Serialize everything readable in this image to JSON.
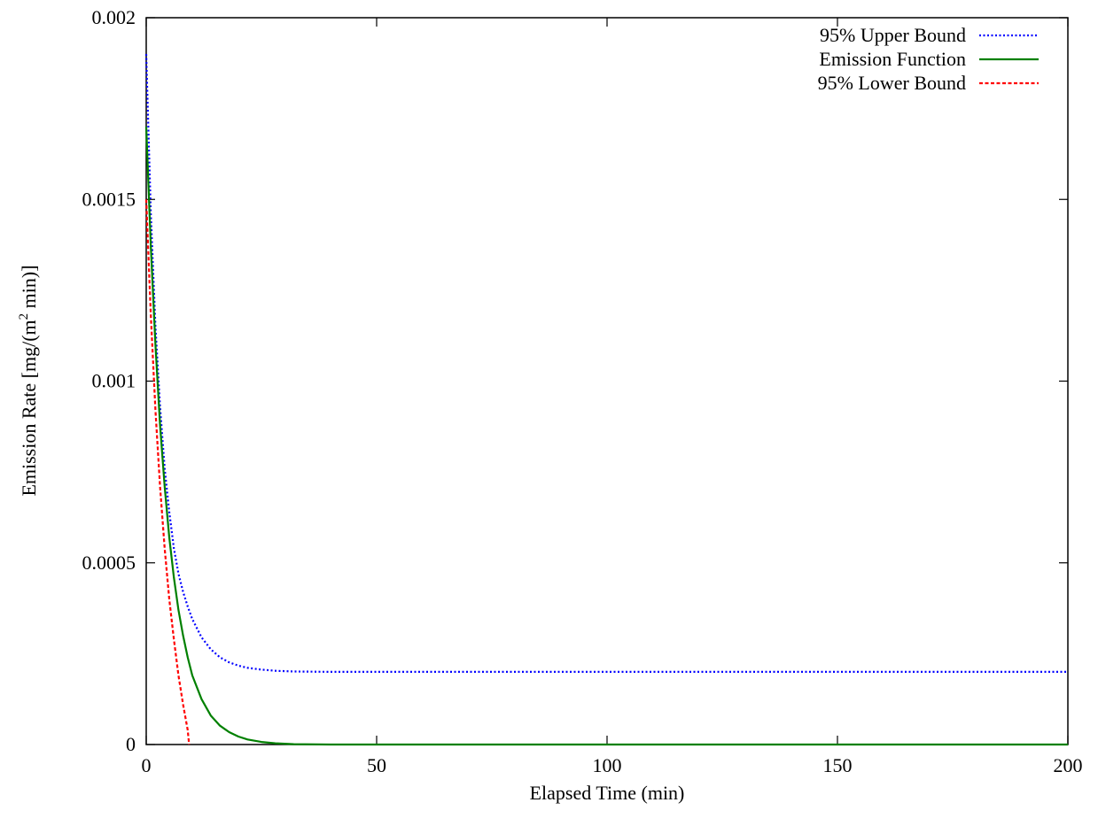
{
  "chart_data": {
    "type": "line",
    "title": "",
    "xlabel": "Elapsed Time (min)",
    "ylabel_main": "Emission Rate [mg/(m",
    "ylabel_sup": "2",
    "ylabel_tail": " min)]",
    "xlim": [
      0,
      200
    ],
    "ylim": [
      0,
      0.002
    ],
    "xticks": [
      0,
      50,
      100,
      150,
      200
    ],
    "xtick_labels": [
      "0",
      "50",
      "100",
      "150",
      "200"
    ],
    "yticks": [
      0,
      0.0005,
      0.001,
      0.0015,
      0.002
    ],
    "ytick_labels": [
      "0",
      "0.0005",
      "0.001",
      "0.0015",
      "0.002"
    ],
    "grid": false,
    "legend_position": "top-right",
    "series": [
      {
        "name": "95% Upper Bound",
        "color": "#0000ff",
        "dash": "dotted",
        "x": [
          0,
          1,
          2,
          3,
          4,
          5,
          6,
          7,
          8,
          9,
          10,
          12,
          14,
          16,
          18,
          20,
          22,
          25,
          28,
          32,
          40,
          60,
          100,
          150,
          200
        ],
        "y": [
          0.0019,
          0.00146,
          0.00115,
          0.00093,
          0.00076,
          0.00064,
          0.00054,
          0.00047,
          0.00042,
          0.00038,
          0.000345,
          0.000295,
          0.000262,
          0.00024,
          0.000226,
          0.000217,
          0.000211,
          0.000206,
          0.000203,
          0.000201,
          0.0002,
          0.0002,
          0.0002,
          0.0002,
          0.0002
        ]
      },
      {
        "name": "Emission Function",
        "color": "#008000",
        "dash": "solid",
        "x": [
          0,
          1,
          2,
          3,
          4,
          5,
          6,
          7,
          8,
          9,
          10,
          12,
          14,
          16,
          18,
          20,
          22,
          25,
          28,
          32,
          40,
          60,
          100,
          150,
          200
        ],
        "y": [
          0.0017,
          0.00137,
          0.0011,
          0.00088,
          0.00071,
          0.00057,
          0.00046,
          0.00037,
          0.0003,
          0.00024,
          0.00019,
          0.000125,
          8e-05,
          5.2e-05,
          3.4e-05,
          2.2e-05,
          1.4e-05,
          7e-06,
          3.5e-06,
          1e-06,
          0.0,
          0.0,
          0.0,
          0.0,
          0.0
        ]
      },
      {
        "name": "95% Lower Bound",
        "color": "#ff0000",
        "dash": "dashed",
        "x": [
          0,
          1,
          2,
          3,
          4,
          5,
          6,
          7,
          8,
          9,
          9.3
        ],
        "y": [
          0.0015,
          0.00118,
          0.00092,
          0.00071,
          0.00054,
          0.0004,
          0.00029,
          0.00019,
          0.00011,
          4e-05,
          0.0
        ]
      }
    ]
  }
}
